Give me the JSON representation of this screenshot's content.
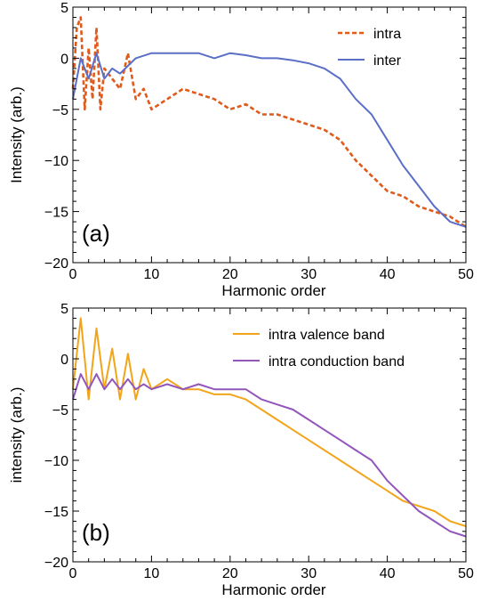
{
  "colors": {
    "intra": "#e05a1b",
    "inter": "#5b6fc6",
    "intra_valence": "#f2a51a",
    "intra_conduction": "#9356bb"
  },
  "chart_data": [
    {
      "type": "line",
      "panel_label": "(a)",
      "xlabel": "Harmonic order",
      "ylabel": "Intensity (arb.)",
      "xlim": [
        0,
        50
      ],
      "ylim": [
        -20,
        5
      ],
      "xticks": [
        "0",
        "10",
        "20",
        "30",
        "40",
        "50"
      ],
      "yticks": [
        "5",
        "0",
        "−5",
        "−10",
        "−15",
        "−20"
      ],
      "legend": {
        "placement": "top-right"
      },
      "grid": false,
      "series": [
        {
          "name": "intra",
          "style": "dashed",
          "color": "#e05a1b",
          "x": [
            0,
            0.5,
            1,
            1.5,
            2,
            2.5,
            3,
            3.5,
            4,
            5,
            6,
            7,
            8,
            9,
            10,
            12,
            14,
            16,
            18,
            20,
            22,
            24,
            26,
            28,
            30,
            32,
            34,
            36,
            38,
            40,
            42,
            44,
            46,
            48,
            50
          ],
          "y": [
            -3,
            3,
            4,
            -5,
            1,
            -4,
            3,
            -5,
            -1,
            -2,
            -3,
            0.5,
            -4,
            -3,
            -5,
            -4,
            -3,
            -3.5,
            -4,
            -5,
            -4.5,
            -5.5,
            -5.5,
            -6,
            -6.5,
            -7,
            -8,
            -10,
            -11.5,
            -13,
            -13.5,
            -14.5,
            -15,
            -15.5,
            -16.5
          ]
        },
        {
          "name": "inter",
          "style": "solid",
          "color": "#5b6fc6",
          "x": [
            0,
            1,
            2,
            3,
            4,
            5,
            6,
            8,
            10,
            12,
            14,
            16,
            18,
            20,
            22,
            24,
            26,
            28,
            30,
            32,
            34,
            36,
            38,
            40,
            42,
            44,
            46,
            48,
            50
          ],
          "y": [
            -4,
            0,
            -2,
            0.5,
            -2,
            -1,
            -1.5,
            0,
            0.5,
            0.5,
            0.5,
            0.5,
            0,
            0.5,
            0.3,
            0,
            0,
            -0.2,
            -0.5,
            -1,
            -2,
            -4,
            -5.5,
            -8,
            -10.5,
            -12.5,
            -14.5,
            -16,
            -16.5
          ]
        }
      ]
    },
    {
      "type": "line",
      "panel_label": "(b)",
      "xlabel": "Harmonic order",
      "ylabel": "intensity (arb.)",
      "xlim": [
        0,
        50
      ],
      "ylim": [
        -20,
        5
      ],
      "xticks": [
        "0",
        "10",
        "20",
        "30",
        "40",
        "50"
      ],
      "yticks": [
        "5",
        "0",
        "−5",
        "−10",
        "−15",
        "−20"
      ],
      "legend": {
        "placement": "top-right"
      },
      "grid": false,
      "series": [
        {
          "name": "intra valence band",
          "style": "solid",
          "color": "#f2a51a",
          "x": [
            0,
            1,
            2,
            3,
            4,
            5,
            6,
            7,
            8,
            9,
            10,
            12,
            14,
            16,
            18,
            20,
            22,
            24,
            26,
            28,
            30,
            32,
            34,
            36,
            38,
            40,
            42,
            44,
            46,
            48,
            50
          ],
          "y": [
            -3,
            4,
            -4,
            3,
            -3,
            1,
            -4,
            0.5,
            -4,
            -1,
            -3,
            -2,
            -3,
            -3,
            -3.5,
            -3.5,
            -4,
            -5,
            -6,
            -7,
            -8,
            -9,
            -10,
            -11,
            -12,
            -13,
            -14,
            -14.5,
            -15,
            -16,
            -16.5
          ]
        },
        {
          "name": "intra conduction band",
          "style": "solid",
          "color": "#9356bb",
          "x": [
            0,
            1,
            2,
            3,
            4,
            5,
            6,
            7,
            8,
            9,
            10,
            12,
            14,
            16,
            18,
            20,
            22,
            24,
            26,
            28,
            30,
            32,
            34,
            36,
            38,
            40,
            42,
            44,
            46,
            48,
            50
          ],
          "y": [
            -4,
            -1.5,
            -3,
            -1.5,
            -3,
            -2,
            -3,
            -2,
            -3,
            -2.5,
            -3,
            -2.5,
            -3,
            -2.5,
            -3,
            -3,
            -3,
            -4,
            -4.5,
            -5,
            -6,
            -7,
            -8,
            -9,
            -10,
            -12,
            -13.5,
            -15,
            -16,
            -17,
            -17.5
          ]
        }
      ]
    }
  ]
}
